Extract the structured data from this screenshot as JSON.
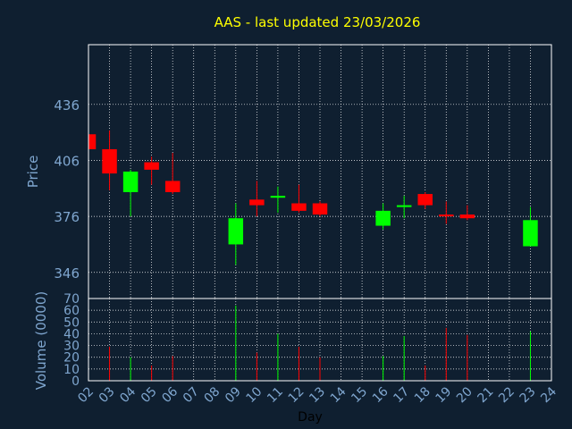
{
  "chart_data": {
    "type": "candlestick",
    "title": "AAS - last updated 23/03/2026",
    "colors": {
      "background": "#0f1f30",
      "title": "#ffff00",
      "axis_text": "#7fa6cf",
      "xlabel_text": "#000000",
      "up": "#00ff00",
      "down": "#ff0000",
      "frame": "#ffffff",
      "grid": "#ffffff"
    },
    "price_panel": {
      "ylabel": "Price",
      "ylim": [
        332,
        468
      ],
      "yticks": [
        346,
        376,
        406,
        436
      ],
      "grid": true
    },
    "volume_panel": {
      "ylabel": "Volume (0000)",
      "ylim": [
        0,
        70
      ],
      "yticks": [
        0,
        10,
        20,
        30,
        40,
        50,
        60,
        70
      ],
      "grid": true
    },
    "xlabel": "Day",
    "xticks": [
      "02",
      "03",
      "04",
      "05",
      "06",
      "07",
      "08",
      "09",
      "10",
      "11",
      "12",
      "13",
      "14",
      "15",
      "16",
      "17",
      "18",
      "19",
      "20",
      "21",
      "22",
      "23",
      "24"
    ],
    "candles": [
      {
        "day": "02",
        "open": 420,
        "high": 421,
        "low": 412,
        "close": 412,
        "volume": 0
      },
      {
        "day": "03",
        "open": 412,
        "high": 422,
        "low": 390,
        "close": 399,
        "volume": 29
      },
      {
        "day": "04",
        "open": 389,
        "high": 401,
        "low": 376,
        "close": 400,
        "volume": 20
      },
      {
        "day": "05",
        "open": 405,
        "high": 408,
        "low": 393,
        "close": 401,
        "volume": 13
      },
      {
        "day": "06",
        "open": 395,
        "high": 410,
        "low": 388,
        "close": 389,
        "volume": 21
      },
      {
        "day": "09",
        "open": 361,
        "high": 383,
        "low": 350,
        "close": 375,
        "volume": 64
      },
      {
        "day": "10",
        "open": 385,
        "high": 395,
        "low": 376,
        "close": 382,
        "volume": 24
      },
      {
        "day": "11",
        "open": 386,
        "high": 392,
        "low": 378,
        "close": 387,
        "volume": 40
      },
      {
        "day": "12",
        "open": 383,
        "high": 393,
        "low": 378,
        "close": 379,
        "volume": 29
      },
      {
        "day": "13",
        "open": 383,
        "high": 384,
        "low": 376,
        "close": 377,
        "volume": 20
      },
      {
        "day": "16",
        "open": 371,
        "high": 383,
        "low": 369,
        "close": 379,
        "volume": 21
      },
      {
        "day": "17",
        "open": 381,
        "high": 387,
        "low": 375,
        "close": 382,
        "volume": 38
      },
      {
        "day": "18",
        "open": 388,
        "high": 389,
        "low": 380,
        "close": 382,
        "volume": 13
      },
      {
        "day": "19",
        "open": 377,
        "high": 384,
        "low": 372,
        "close": 376,
        "volume": 45
      },
      {
        "day": "20",
        "open": 377,
        "high": 382,
        "low": 374,
        "close": 375,
        "volume": 39
      },
      {
        "day": "23",
        "open": 360,
        "high": 381,
        "low": 360,
        "close": 374,
        "volume": 42
      }
    ]
  }
}
